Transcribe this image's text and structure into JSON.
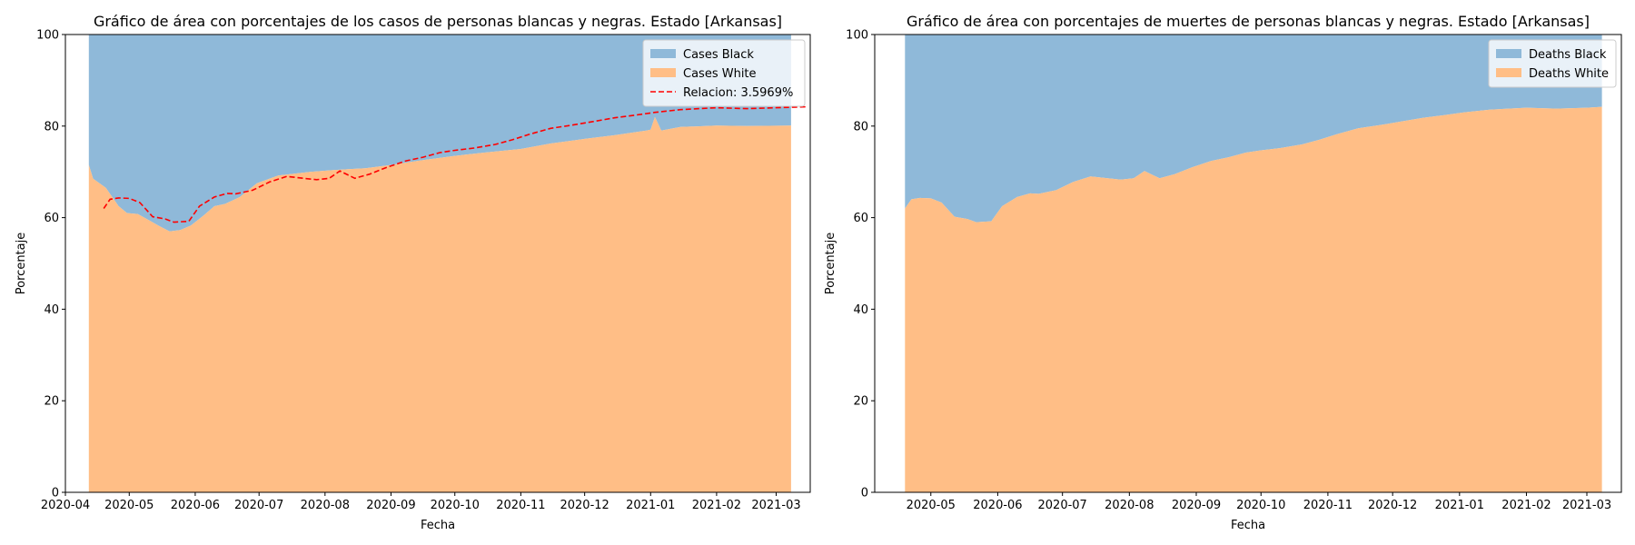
{
  "chart_data": [
    {
      "type": "area",
      "stacked": true,
      "normalized_percent": true,
      "title": "Gráfico de área con porcentajes de los casos de personas blancas y negras. Estado [Arkansas]",
      "xlabel": "Fecha",
      "ylabel": "Porcentaje",
      "ylim": [
        0,
        100
      ],
      "xlim": [
        "2020-04-01",
        "2021-03-17"
      ],
      "yticks": [
        0,
        20,
        40,
        60,
        80,
        100
      ],
      "xticks": [
        "2020-04",
        "2020-05",
        "2020-06",
        "2020-07",
        "2020-08",
        "2020-09",
        "2020-10",
        "2020-11",
        "2020-12",
        "2021-01",
        "2021-02",
        "2021-03"
      ],
      "grid": false,
      "legend_position": "top-right",
      "x": [
        "2020-04-12",
        "2020-04-14",
        "2020-04-17",
        "2020-04-20",
        "2020-04-23",
        "2020-04-26",
        "2020-04-30",
        "2020-05-05",
        "2020-05-10",
        "2020-05-15",
        "2020-05-20",
        "2020-05-25",
        "2020-05-30",
        "2020-06-05",
        "2020-06-10",
        "2020-06-15",
        "2020-06-22",
        "2020-06-30",
        "2020-07-10",
        "2020-07-25",
        "2020-08-05",
        "2020-08-20",
        "2020-09-01",
        "2020-09-15",
        "2020-10-01",
        "2020-10-15",
        "2020-11-01",
        "2020-11-15",
        "2020-12-01",
        "2020-12-15",
        "2020-12-30",
        "2021-01-01",
        "2021-01-03",
        "2021-01-06",
        "2021-01-15",
        "2021-02-01",
        "2021-02-15",
        "2021-03-08"
      ],
      "series": [
        {
          "name": "Cases White",
          "color": "#ffbe86",
          "values": [
            71.5,
            68.5,
            67.5,
            66.5,
            64.5,
            62.5,
            61.0,
            60.8,
            59.5,
            58.2,
            57.0,
            57.3,
            58.3,
            60.5,
            62.5,
            63.0,
            64.5,
            67.5,
            69.2,
            70.0,
            70.4,
            70.8,
            71.5,
            72.5,
            73.5,
            74.2,
            75.0,
            76.2,
            77.2,
            78.0,
            79.0,
            79.2,
            82.0,
            79.0,
            79.8,
            80.1,
            80.0,
            80.1
          ]
        },
        {
          "name": "Cases Black",
          "color": "#8fb9d9",
          "values": [
            28.5,
            31.5,
            32.5,
            33.5,
            35.5,
            37.5,
            39.0,
            39.2,
            40.5,
            41.8,
            43.0,
            42.7,
            41.7,
            39.5,
            37.5,
            37.0,
            35.5,
            32.5,
            30.8,
            30.0,
            29.6,
            29.2,
            28.5,
            27.5,
            26.5,
            25.8,
            25.0,
            23.8,
            22.8,
            22.0,
            21.0,
            20.8,
            18.0,
            21.0,
            20.2,
            19.9,
            20.0,
            19.9
          ]
        }
      ],
      "line": {
        "name": "Relacion: 3.5969%",
        "color": "#ff0000",
        "style": "dashed",
        "x": [
          "2020-04-19",
          "2020-04-22",
          "2020-04-26",
          "2020-05-01",
          "2020-05-06",
          "2020-05-12",
          "2020-05-18",
          "2020-05-22",
          "2020-05-29",
          "2020-06-03",
          "2020-06-10",
          "2020-06-16",
          "2020-06-20",
          "2020-06-28",
          "2020-07-06",
          "2020-07-14",
          "2020-07-22",
          "2020-07-28",
          "2020-08-03",
          "2020-08-08",
          "2020-08-15",
          "2020-08-22",
          "2020-08-30",
          "2020-09-08",
          "2020-09-16",
          "2020-09-24",
          "2020-10-01",
          "2020-10-10",
          "2020-10-20",
          "2020-10-28",
          "2020-11-05",
          "2020-11-15",
          "2020-11-25",
          "2020-12-05",
          "2020-12-15",
          "2020-12-25",
          "2021-01-03",
          "2021-01-15",
          "2021-02-01",
          "2021-02-15",
          "2021-03-01",
          "2021-03-15"
        ],
        "values": [
          62.0,
          64.0,
          64.3,
          64.2,
          63.3,
          60.2,
          59.7,
          59.0,
          59.2,
          62.5,
          64.5,
          65.3,
          65.2,
          66.0,
          67.8,
          69.0,
          68.6,
          68.3,
          68.6,
          70.2,
          68.6,
          69.5,
          71.0,
          72.4,
          73.2,
          74.2,
          74.7,
          75.2,
          76.0,
          77.0,
          78.2,
          79.5,
          80.2,
          81.0,
          81.8,
          82.4,
          83.0,
          83.6,
          84.0,
          83.8,
          84.0,
          84.2
        ]
      }
    },
    {
      "type": "area",
      "stacked": true,
      "normalized_percent": true,
      "title": "Gráfico de área con porcentajes de muertes de personas blancas y negras. Estado [Arkansas]",
      "xlabel": "Fecha",
      "ylabel": "Porcentaje",
      "ylim": [
        0,
        100
      ],
      "xlim": [
        "2020-04-05",
        "2021-03-17"
      ],
      "yticks": [
        0,
        20,
        40,
        60,
        80,
        100
      ],
      "xticks": [
        "2020-05",
        "2020-06",
        "2020-07",
        "2020-08",
        "2020-09",
        "2020-10",
        "2020-11",
        "2020-12",
        "2021-01",
        "2021-02",
        "2021-03"
      ],
      "grid": false,
      "legend_position": "top-right",
      "x": [
        "2020-04-19",
        "2020-04-22",
        "2020-04-26",
        "2020-05-01",
        "2020-05-06",
        "2020-05-12",
        "2020-05-18",
        "2020-05-22",
        "2020-05-29",
        "2020-06-03",
        "2020-06-10",
        "2020-06-16",
        "2020-06-20",
        "2020-06-28",
        "2020-07-06",
        "2020-07-14",
        "2020-07-22",
        "2020-07-28",
        "2020-08-03",
        "2020-08-08",
        "2020-08-15",
        "2020-08-22",
        "2020-08-30",
        "2020-09-08",
        "2020-09-16",
        "2020-09-24",
        "2020-10-01",
        "2020-10-10",
        "2020-10-20",
        "2020-10-28",
        "2020-11-05",
        "2020-11-15",
        "2020-11-25",
        "2020-12-05",
        "2020-12-15",
        "2020-12-25",
        "2021-01-03",
        "2021-01-15",
        "2021-02-01",
        "2021-02-15",
        "2021-03-01",
        "2021-03-08"
      ],
      "series": [
        {
          "name": "Deaths White",
          "color": "#ffbe86",
          "values": [
            62.0,
            64.0,
            64.3,
            64.2,
            63.3,
            60.2,
            59.7,
            59.0,
            59.2,
            62.5,
            64.5,
            65.3,
            65.2,
            66.0,
            67.8,
            69.0,
            68.6,
            68.3,
            68.6,
            70.2,
            68.6,
            69.5,
            71.0,
            72.4,
            73.2,
            74.2,
            74.7,
            75.2,
            76.0,
            77.0,
            78.2,
            79.5,
            80.2,
            81.0,
            81.8,
            82.4,
            83.0,
            83.6,
            84.0,
            83.8,
            84.0,
            84.2
          ]
        },
        {
          "name": "Deaths Black",
          "color": "#8fb9d9",
          "values": [
            38.0,
            36.0,
            35.7,
            35.8,
            36.7,
            39.8,
            40.3,
            41.0,
            40.8,
            37.5,
            35.5,
            34.7,
            34.8,
            34.0,
            32.2,
            31.0,
            31.4,
            31.7,
            31.4,
            29.8,
            31.4,
            30.5,
            29.0,
            27.6,
            26.8,
            25.8,
            25.3,
            24.8,
            24.0,
            23.0,
            21.8,
            20.5,
            19.8,
            19.0,
            18.2,
            17.6,
            17.0,
            16.4,
            16.0,
            16.2,
            16.0,
            15.8
          ]
        }
      ]
    }
  ]
}
